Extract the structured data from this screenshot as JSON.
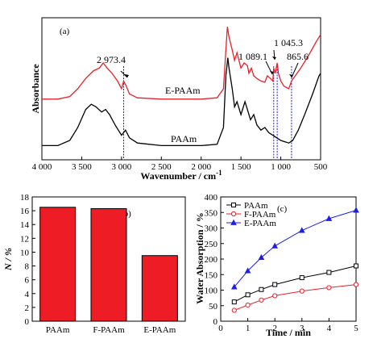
{
  "chart_data": [
    {
      "type": "line",
      "panel_label": "(a)",
      "xlabel": "Wavenumber / cm",
      "xlabel_sup": "-1",
      "ylabel": "Absorbance",
      "xlim": [
        4000,
        500
      ],
      "xticks": [
        "4 000",
        "3 500",
        "3 000",
        "2 500",
        "2 000",
        "1 500",
        "1 000",
        "500"
      ],
      "xtick_values": [
        4000,
        3500,
        3000,
        2500,
        2000,
        1500,
        1000,
        500
      ],
      "series": [
        {
          "name": "E-PAAm",
          "color": "#e8202a",
          "points": [
            [
              4000,
              0.42
            ],
            [
              3800,
              0.42
            ],
            [
              3650,
              0.44
            ],
            [
              3550,
              0.5
            ],
            [
              3450,
              0.58
            ],
            [
              3350,
              0.64
            ],
            [
              3280,
              0.66
            ],
            [
              3230,
              0.7
            ],
            [
              3180,
              0.66
            ],
            [
              3120,
              0.62
            ],
            [
              3050,
              0.56
            ],
            [
              3000,
              0.5
            ],
            [
              2973,
              0.56
            ],
            [
              2940,
              0.52
            ],
            [
              2900,
              0.46
            ],
            [
              2800,
              0.43
            ],
            [
              2500,
              0.42
            ],
            [
              2200,
              0.42
            ],
            [
              2000,
              0.42
            ],
            [
              1800,
              0.43
            ],
            [
              1720,
              0.5
            ],
            [
              1690,
              0.8
            ],
            [
              1670,
              0.98
            ],
            [
              1650,
              0.9
            ],
            [
              1610,
              0.8
            ],
            [
              1580,
              0.72
            ],
            [
              1550,
              0.78
            ],
            [
              1500,
              0.66
            ],
            [
              1460,
              0.7
            ],
            [
              1420,
              0.68
            ],
            [
              1400,
              0.62
            ],
            [
              1370,
              0.66
            ],
            [
              1340,
              0.6
            ],
            [
              1300,
              0.58
            ],
            [
              1250,
              0.56
            ],
            [
              1200,
              0.55
            ],
            [
              1170,
              0.6
            ],
            [
              1130,
              0.58
            ],
            [
              1100,
              0.56
            ],
            [
              1089,
              0.66
            ],
            [
              1070,
              0.62
            ],
            [
              1045,
              0.7
            ],
            [
              1030,
              0.62
            ],
            [
              1000,
              0.56
            ],
            [
              960,
              0.52
            ],
            [
              900,
              0.5
            ],
            [
              865,
              0.56
            ],
            [
              820,
              0.6
            ],
            [
              750,
              0.66
            ],
            [
              650,
              0.76
            ],
            [
              560,
              0.86
            ],
            [
              500,
              0.92
            ]
          ]
        },
        {
          "name": "PAAm",
          "color": "#000000",
          "points": [
            [
              4000,
              0.06
            ],
            [
              3800,
              0.06
            ],
            [
              3650,
              0.1
            ],
            [
              3550,
              0.2
            ],
            [
              3450,
              0.34
            ],
            [
              3380,
              0.38
            ],
            [
              3320,
              0.36
            ],
            [
              3250,
              0.32
            ],
            [
              3200,
              0.34
            ],
            [
              3150,
              0.3
            ],
            [
              3080,
              0.22
            ],
            [
              3000,
              0.14
            ],
            [
              2950,
              0.18
            ],
            [
              2900,
              0.12
            ],
            [
              2800,
              0.08
            ],
            [
              2500,
              0.06
            ],
            [
              2200,
              0.06
            ],
            [
              2000,
              0.06
            ],
            [
              1800,
              0.07
            ],
            [
              1720,
              0.2
            ],
            [
              1690,
              0.6
            ],
            [
              1665,
              0.74
            ],
            [
              1650,
              0.66
            ],
            [
              1610,
              0.5
            ],
            [
              1580,
              0.36
            ],
            [
              1550,
              0.4
            ],
            [
              1500,
              0.3
            ],
            [
              1450,
              0.4
            ],
            [
              1420,
              0.34
            ],
            [
              1380,
              0.26
            ],
            [
              1340,
              0.3
            ],
            [
              1300,
              0.22
            ],
            [
              1250,
              0.18
            ],
            [
              1200,
              0.2
            ],
            [
              1150,
              0.16
            ],
            [
              1100,
              0.14
            ],
            [
              1050,
              0.12
            ],
            [
              1000,
              0.1
            ],
            [
              950,
              0.09
            ],
            [
              900,
              0.08
            ],
            [
              850,
              0.1
            ],
            [
              780,
              0.18
            ],
            [
              700,
              0.3
            ],
            [
              600,
              0.46
            ],
            [
              520,
              0.6
            ],
            [
              500,
              0.62
            ]
          ]
        }
      ],
      "annotations": [
        {
          "text": "2 973.4",
          "x": 2973
        },
        {
          "text": "1 089.1",
          "x": 1089
        },
        {
          "text": "1 045.3",
          "x": 1045
        },
        {
          "text": "865.6",
          "x": 865
        }
      ],
      "guide_lines": [
        2973,
        1089,
        1045,
        865
      ]
    },
    {
      "type": "bar",
      "panel_label": "(b)",
      "ylabel": "N / %",
      "ylim": [
        0,
        18
      ],
      "yticks": [
        0,
        2,
        4,
        6,
        8,
        10,
        12,
        14,
        16,
        18
      ],
      "categories": [
        "PAAm",
        "F-PAAm",
        "E-PAAm"
      ],
      "values": [
        16.5,
        16.3,
        9.5
      ],
      "color": "#ee1c24"
    },
    {
      "type": "line",
      "panel_label": "(c)",
      "xlabel": "Time / min",
      "ylabel": "Water Absorption / %",
      "xlim": [
        0,
        5
      ],
      "ylim": [
        0,
        400
      ],
      "xticks": [
        0,
        1,
        2,
        3,
        4,
        5
      ],
      "yticks": [
        0,
        50,
        100,
        150,
        200,
        250,
        300,
        350,
        400
      ],
      "legend_position": "top-left",
      "series": [
        {
          "name": "PAAm",
          "color": "#000000",
          "marker": "square",
          "x": [
            0.5,
            1,
            1.5,
            2,
            3,
            4,
            5
          ],
          "y": [
            62,
            85,
            102,
            118,
            140,
            157,
            178
          ]
        },
        {
          "name": "F-PAAm",
          "color": "#e8202a",
          "marker": "circle",
          "x": [
            0.5,
            1,
            1.5,
            2,
            3,
            4,
            5
          ],
          "y": [
            35,
            52,
            68,
            82,
            97,
            108,
            118
          ]
        },
        {
          "name": "E-PAAm",
          "color": "#1e1ee8",
          "marker": "triangle",
          "x": [
            0.5,
            1,
            1.5,
            2,
            3,
            4,
            5
          ],
          "y": [
            110,
            162,
            205,
            242,
            292,
            330,
            357
          ]
        }
      ]
    }
  ]
}
